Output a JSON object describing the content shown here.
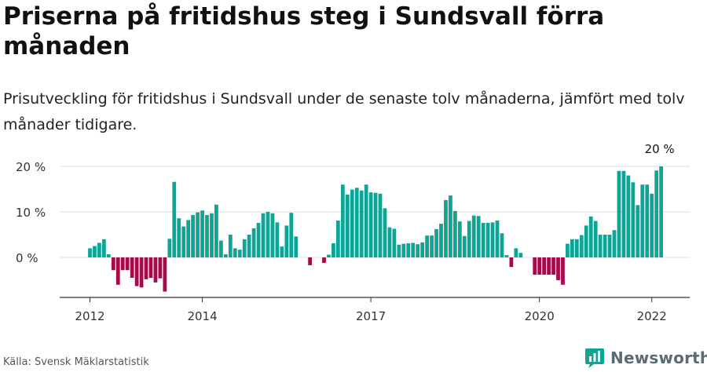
{
  "title": "Priserna på fritidshus steg i Sundsvall förra månaden",
  "subtitle": "Prisutveckling för fritidshus i Sundsvall under de senaste tolv månaderna, jämfört med tolv månader tidigare.",
  "source": "Källa: Svensk Mäklarstatistik",
  "brand": "Newsworthy",
  "colors": {
    "positive": "#0ca596",
    "negative": "#a50a4a",
    "grid": "#dcdcdc",
    "axis": "#333333",
    "brand": "#0ca596"
  },
  "chart_data": {
    "type": "bar",
    "x_start": "2012-01",
    "x_tick_labels": [
      "2012",
      "2014",
      "2017",
      "2020",
      "2022"
    ],
    "x_tick_dates": [
      "2012-01",
      "2014-01",
      "2017-01",
      "2020-01",
      "2022-01"
    ],
    "y_tick_labels": [
      "20 %",
      "10 %",
      "0 %"
    ],
    "y_ticks": [
      20,
      10,
      0
    ],
    "ylim": [
      -8.5,
      21
    ],
    "last_value_label": "20 %",
    "values": [
      2,
      2.5,
      3.2,
      4,
      0.7,
      -2.8,
      -6,
      -2.8,
      -2.8,
      -4.5,
      -6.3,
      -6.6,
      -4.8,
      -4.5,
      -5.5,
      -4.6,
      -7.5,
      4.1,
      16.6,
      8.6,
      6.8,
      8.2,
      9.3,
      9.9,
      10.3,
      9.3,
      9.7,
      11.6,
      3.7,
      0.7,
      5,
      2,
      1.7,
      4,
      5,
      6.4,
      7.6,
      9.7,
      10,
      9.7,
      7.7,
      2.4,
      7,
      9.8,
      4.6,
      0,
      0,
      -1.7,
      0,
      0,
      -1.2,
      0.6,
      3.1,
      8.1,
      16,
      13.8,
      14.9,
      15.3,
      14.7,
      16,
      14.3,
      14.2,
      14,
      10.8,
      6.6,
      6.3,
      2.8,
      3,
      3.1,
      3.2,
      2.9,
      3.3,
      4.8,
      4.8,
      6.2,
      7.4,
      12.6,
      13.6,
      10.2,
      7.9,
      4.7,
      8,
      9.2,
      9.1,
      7.6,
      7.6,
      7.7,
      8.1,
      5.3,
      0.5,
      -2.1,
      2,
      1,
      0,
      0,
      -3.8,
      -3.8,
      -3.8,
      -3.8,
      -3.8,
      -5,
      -6,
      3,
      4,
      4,
      4.9,
      7,
      9,
      8,
      5,
      5,
      5,
      6,
      19,
      19,
      18,
      16.5,
      11.5,
      16,
      16,
      14,
      19.1,
      20
    ]
  }
}
